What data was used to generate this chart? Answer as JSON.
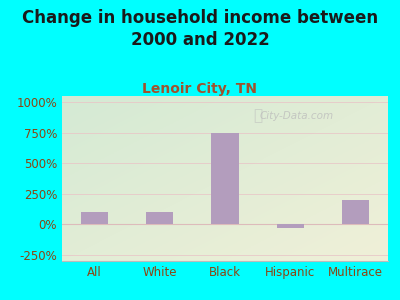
{
  "title": "Change in household income between\n2000 and 2022",
  "subtitle": "Lenoir City, TN",
  "categories": [
    "All",
    "White",
    "Black",
    "Hispanic",
    "Multirace"
  ],
  "values": [
    100,
    100,
    750,
    -30,
    200
  ],
  "bar_color": "#b39dbd",
  "background_color": "#00ffff",
  "plot_bg_top_left": "#d4ead4",
  "plot_bg_bottom_right": "#f0f0d8",
  "title_color": "#1a1a1a",
  "subtitle_color": "#a0522d",
  "tick_label_color": "#8b4513",
  "ylim": [
    -300,
    1050
  ],
  "yticks": [
    -250,
    0,
    250,
    500,
    750,
    1000
  ],
  "ytick_labels": [
    "-250%",
    "0%",
    "250%",
    "500%",
    "750%",
    "1000%"
  ],
  "watermark_text": "City-Data.com",
  "title_fontsize": 12,
  "subtitle_fontsize": 10,
  "tick_fontsize": 8.5
}
